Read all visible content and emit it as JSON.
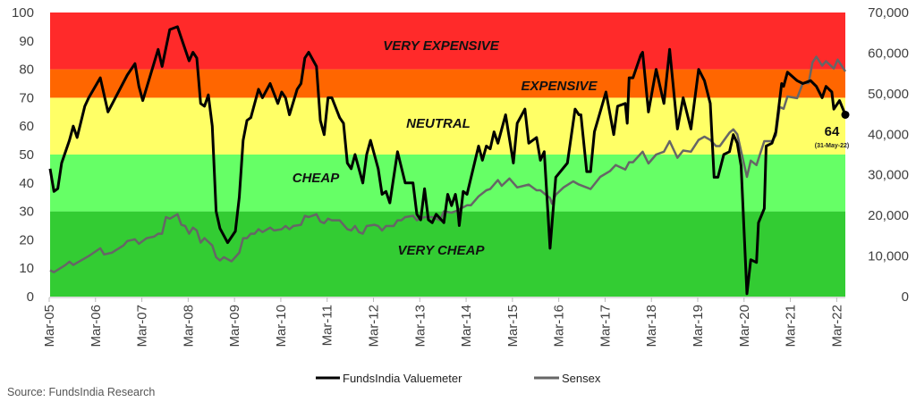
{
  "chart_data": {
    "type": "line",
    "x_unit": "months since Mar-05",
    "x_ticks": [
      "Mar-05",
      "Mar-06",
      "Mar-07",
      "Mar-08",
      "Mar-09",
      "Mar-10",
      "Mar-11",
      "Mar-12",
      "Mar-13",
      "Mar-14",
      "Mar-15",
      "Mar-16",
      "Mar-17",
      "Mar-18",
      "Mar-19",
      "Mar-20",
      "Mar-21",
      "Mar-22"
    ],
    "xlim": [
      0,
      206
    ],
    "y_left": {
      "ticks": [
        "0",
        "10",
        "20",
        "30",
        "40",
        "50",
        "60",
        "70",
        "80",
        "90",
        "100"
      ],
      "lim": [
        0,
        100
      ]
    },
    "y_right": {
      "ticks": [
        "0",
        "10,000",
        "20,000",
        "30,000",
        "40,000",
        "50,000",
        "60,000",
        "70,000"
      ],
      "lim": [
        0,
        70000
      ]
    },
    "grid": false,
    "legend_position": "bottom",
    "bands": [
      {
        "label": "VERY CHEAP",
        "from": 0,
        "to": 30,
        "color": "#33CC33"
      },
      {
        "label": "CHEAP",
        "from": 30,
        "to": 50,
        "color": "#66FF66"
      },
      {
        "label": "NEUTRAL",
        "from": 50,
        "to": 70,
        "color": "#FFFF66"
      },
      {
        "label": "EXPENSIVE",
        "from": 70,
        "to": 80,
        "color": "#FF6600"
      },
      {
        "label": "VERY EXPENSIVE",
        "from": 80,
        "to": 100,
        "color": "#FF2A2A"
      }
    ],
    "annotation": {
      "value": "64",
      "date": "(31-May-22)"
    },
    "series": [
      {
        "name": "FundsIndia Valuemeter",
        "axis": "left",
        "color": "#000000",
        "points": [
          [
            0,
            45
          ],
          [
            1,
            37
          ],
          [
            2,
            38
          ],
          [
            3,
            47
          ],
          [
            5,
            55
          ],
          [
            6,
            60
          ],
          [
            7,
            56
          ],
          [
            9,
            67
          ],
          [
            10,
            70
          ],
          [
            13,
            77
          ],
          [
            15,
            65
          ],
          [
            20,
            78
          ],
          [
            22,
            82
          ],
          [
            23,
            74
          ],
          [
            24,
            69
          ],
          [
            28,
            87
          ],
          [
            29,
            81
          ],
          [
            31,
            94
          ],
          [
            33,
            95
          ],
          [
            34,
            91
          ],
          [
            36,
            83
          ],
          [
            37,
            86
          ],
          [
            38,
            84
          ],
          [
            39,
            68
          ],
          [
            40,
            67
          ],
          [
            41,
            71
          ],
          [
            42,
            60
          ],
          [
            43,
            30
          ],
          [
            44,
            24
          ],
          [
            46,
            19
          ],
          [
            48,
            23
          ],
          [
            49,
            35
          ],
          [
            50,
            55
          ],
          [
            51,
            62
          ],
          [
            52,
            63
          ],
          [
            54,
            73
          ],
          [
            55,
            70
          ],
          [
            57,
            75
          ],
          [
            59,
            68
          ],
          [
            60,
            72
          ],
          [
            61,
            70
          ],
          [
            62,
            64
          ],
          [
            64,
            73
          ],
          [
            65,
            75
          ],
          [
            66,
            84
          ],
          [
            67,
            86
          ],
          [
            69,
            81
          ],
          [
            70,
            62
          ],
          [
            71,
            57
          ],
          [
            72,
            70
          ],
          [
            73,
            70
          ],
          [
            75,
            63
          ],
          [
            76,
            61
          ],
          [
            77,
            47
          ],
          [
            78,
            45
          ],
          [
            79,
            50
          ],
          [
            81,
            40
          ],
          [
            82,
            50
          ],
          [
            83,
            55
          ],
          [
            85,
            45
          ],
          [
            86,
            36
          ],
          [
            87,
            37
          ],
          [
            88,
            33
          ],
          [
            90,
            51
          ],
          [
            92,
            40
          ],
          [
            94,
            40
          ],
          [
            95,
            29
          ],
          [
            96,
            27
          ],
          [
            97,
            38
          ],
          [
            98,
            27
          ],
          [
            99,
            26
          ],
          [
            100,
            29
          ],
          [
            102,
            26
          ],
          [
            103,
            36
          ],
          [
            104,
            32
          ],
          [
            105,
            36
          ],
          [
            105.6,
            31
          ],
          [
            106,
            25
          ],
          [
            107,
            37
          ],
          [
            108,
            36
          ],
          [
            111,
            53
          ],
          [
            112,
            48
          ],
          [
            113,
            53
          ],
          [
            114,
            52
          ],
          [
            115,
            58
          ],
          [
            116,
            54
          ],
          [
            118,
            64
          ],
          [
            120,
            47
          ],
          [
            121,
            61
          ],
          [
            123,
            66
          ],
          [
            124,
            54
          ],
          [
            126,
            56
          ],
          [
            127,
            48
          ],
          [
            128,
            51
          ],
          [
            129.5,
            17
          ],
          [
            131,
            42
          ],
          [
            134,
            47
          ],
          [
            136,
            66
          ],
          [
            137,
            64
          ],
          [
            137.5,
            64
          ],
          [
            139,
            44
          ],
          [
            140,
            44
          ],
          [
            141,
            58
          ],
          [
            144,
            72
          ],
          [
            146,
            57
          ],
          [
            147,
            67
          ],
          [
            149,
            68
          ],
          [
            149.5,
            61
          ],
          [
            150,
            77
          ],
          [
            151,
            77
          ],
          [
            153,
            85
          ],
          [
            153.5,
            86
          ],
          [
            155,
            65
          ],
          [
            157,
            80
          ],
          [
            159,
            68
          ],
          [
            160.5,
            87
          ],
          [
            162.5,
            59
          ],
          [
            164,
            70
          ],
          [
            166,
            59
          ],
          [
            168,
            80
          ],
          [
            169.5,
            76
          ],
          [
            171,
            68
          ],
          [
            172,
            42
          ],
          [
            173,
            42
          ],
          [
            174.5,
            50
          ],
          [
            176,
            51
          ],
          [
            177,
            57
          ],
          [
            178,
            54
          ],
          [
            179,
            46
          ],
          [
            180.5,
            1
          ],
          [
            181.5,
            13
          ],
          [
            183,
            12
          ],
          [
            183.5,
            26
          ],
          [
            185,
            31
          ],
          [
            185.5,
            53
          ],
          [
            187,
            54
          ],
          [
            188,
            58
          ],
          [
            189.5,
            75
          ],
          [
            190,
            74
          ],
          [
            191,
            79
          ],
          [
            193.5,
            76
          ],
          [
            195,
            75
          ],
          [
            197,
            76
          ],
          [
            198.5,
            74
          ],
          [
            200,
            70
          ],
          [
            201,
            74
          ],
          [
            202.5,
            72
          ],
          [
            203,
            66
          ],
          [
            204.5,
            69
          ],
          [
            206,
            64
          ]
        ]
      },
      {
        "name": "Sensex",
        "axis": "right",
        "color": "#666666",
        "points": [
          [
            0,
            6500
          ],
          [
            1,
            6000
          ],
          [
            4,
            7800
          ],
          [
            5,
            8600
          ],
          [
            6,
            7800
          ],
          [
            10,
            10000
          ],
          [
            13,
            11900
          ],
          [
            14,
            10400
          ],
          [
            16,
            10800
          ],
          [
            19,
            12600
          ],
          [
            20,
            13700
          ],
          [
            22,
            14100
          ],
          [
            23,
            13000
          ],
          [
            25,
            14400
          ],
          [
            27,
            14800
          ],
          [
            28,
            15500
          ],
          [
            29,
            15500
          ],
          [
            30,
            19600
          ],
          [
            31,
            19200
          ],
          [
            33,
            20300
          ],
          [
            34,
            17700
          ],
          [
            35,
            17400
          ],
          [
            36,
            15500
          ],
          [
            37,
            17000
          ],
          [
            38,
            16300
          ],
          [
            39,
            13300
          ],
          [
            40,
            14400
          ],
          [
            42,
            12600
          ],
          [
            43,
            9700
          ],
          [
            44,
            8900
          ],
          [
            45,
            9700
          ],
          [
            47,
            8700
          ],
          [
            49,
            10800
          ],
          [
            50,
            14400
          ],
          [
            51,
            14400
          ],
          [
            52,
            15500
          ],
          [
            53,
            15500
          ],
          [
            54,
            16600
          ],
          [
            55,
            15900
          ],
          [
            57,
            17000
          ],
          [
            58,
            16300
          ],
          [
            60,
            16600
          ],
          [
            61,
            17400
          ],
          [
            62,
            16600
          ],
          [
            63,
            17400
          ],
          [
            65,
            17700
          ],
          [
            66,
            19900
          ],
          [
            67,
            19600
          ],
          [
            69,
            20300
          ],
          [
            70,
            18500
          ],
          [
            71,
            18100
          ],
          [
            72,
            19200
          ],
          [
            73,
            18800
          ],
          [
            75,
            18800
          ],
          [
            77,
            16600
          ],
          [
            78,
            16300
          ],
          [
            79,
            17400
          ],
          [
            80,
            15900
          ],
          [
            81,
            15500
          ],
          [
            82,
            17400
          ],
          [
            84,
            17700
          ],
          [
            85,
            17400
          ],
          [
            86,
            16300
          ],
          [
            87,
            17400
          ],
          [
            89,
            17400
          ],
          [
            90,
            18800
          ],
          [
            91,
            18800
          ],
          [
            92,
            19600
          ],
          [
            94,
            19900
          ],
          [
            95,
            18800
          ],
          [
            97,
            19600
          ],
          [
            99,
            19600
          ],
          [
            101,
            18800
          ],
          [
            102,
            21000
          ],
          [
            104,
            20700
          ],
          [
            105,
            21000
          ],
          [
            108,
            22500
          ],
          [
            109,
            22500
          ],
          [
            111,
            24700
          ],
          [
            113,
            26200
          ],
          [
            114,
            26500
          ],
          [
            116,
            28700
          ],
          [
            117,
            27300
          ],
          [
            119,
            29100
          ],
          [
            121,
            26900
          ],
          [
            124,
            27600
          ],
          [
            126,
            26200
          ],
          [
            127,
            26200
          ],
          [
            128,
            25400
          ],
          [
            129.5,
            24300
          ],
          [
            130,
            22900
          ],
          [
            131,
            25100
          ],
          [
            133,
            26900
          ],
          [
            135.5,
            28400
          ],
          [
            137,
            27600
          ],
          [
            140,
            26500
          ],
          [
            142.5,
            29500
          ],
          [
            145,
            30900
          ],
          [
            146.5,
            32400
          ],
          [
            149,
            31300
          ],
          [
            150,
            33100
          ],
          [
            151,
            33100
          ],
          [
            153.5,
            35700
          ],
          [
            155,
            32800
          ],
          [
            157,
            35000
          ],
          [
            159,
            35700
          ],
          [
            160.5,
            38300
          ],
          [
            162.5,
            34200
          ],
          [
            164,
            36000
          ],
          [
            166,
            35700
          ],
          [
            168,
            38600
          ],
          [
            169.5,
            39400
          ],
          [
            171,
            38600
          ],
          [
            172.5,
            37100
          ],
          [
            173.5,
            37100
          ],
          [
            176,
            40400
          ],
          [
            177,
            41200
          ],
          [
            178,
            40000
          ],
          [
            180.5,
            29500
          ],
          [
            181.5,
            33500
          ],
          [
            183,
            32400
          ],
          [
            185,
            38300
          ],
          [
            187,
            38300
          ],
          [
            188,
            39700
          ],
          [
            189,
            46700
          ],
          [
            190,
            46300
          ],
          [
            191,
            49300
          ],
          [
            193.5,
            48900
          ],
          [
            195,
            52600
          ],
          [
            196.5,
            52600
          ],
          [
            197.5,
            57700
          ],
          [
            198.5,
            59100
          ],
          [
            200,
            56900
          ],
          [
            201,
            58000
          ],
          [
            203,
            56200
          ],
          [
            204,
            58400
          ],
          [
            206,
            55500
          ]
        ]
      }
    ]
  },
  "source": "Source: FundsIndia Research"
}
